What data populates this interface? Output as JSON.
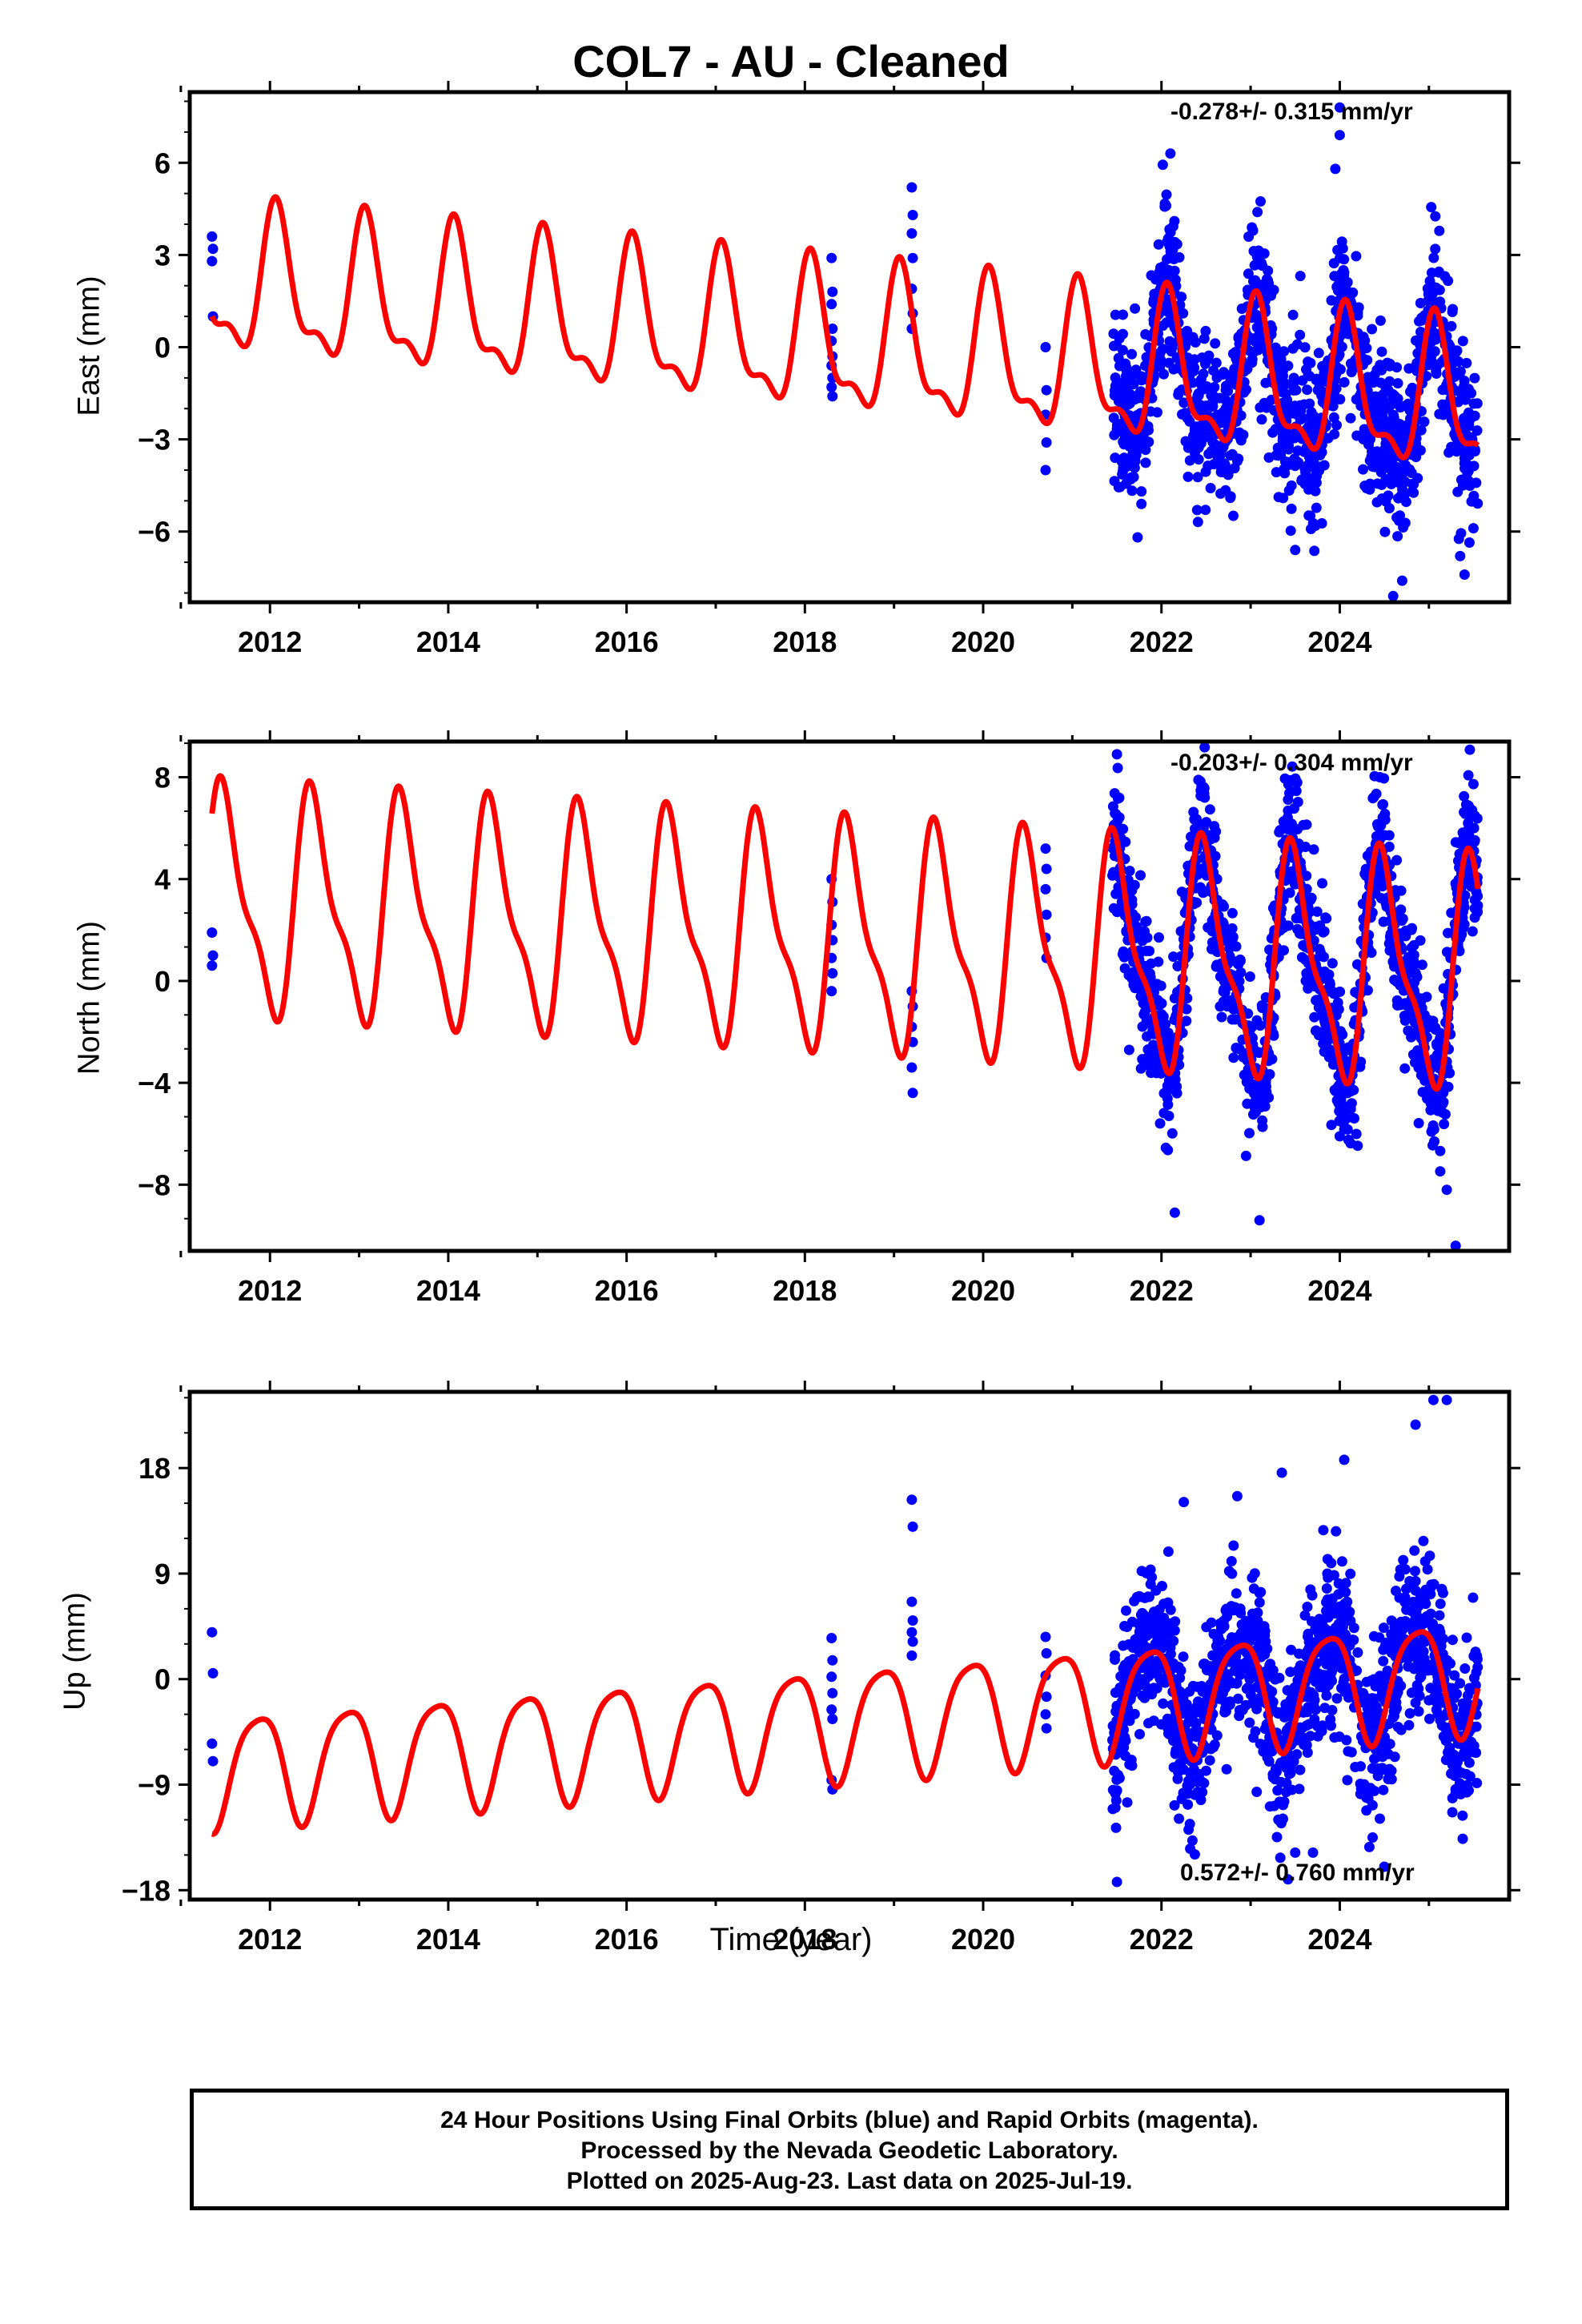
{
  "title": "COL7  - AU - Cleaned",
  "x_axis_label": "Time (year)",
  "footer": {
    "line1": "24 Hour Positions Using Final Orbits (blue) and Rapid Orbits (magenta).",
    "line2": "Processed by the Nevada Geodetic Laboratory.",
    "line3": "Plotted on 2025-Aug-23. Last data on 2025-Jul-19."
  },
  "colors": {
    "points": "#0000ff",
    "model": "#ff0000",
    "frame": "#000000"
  },
  "chart_data": [
    {
      "type": "scatter",
      "name": "east",
      "ylabel": "East (mm)",
      "rate_text": "-0.278+/- 0.315 mm/yr",
      "rate_position": "top-right",
      "xlim": [
        2011.1,
        2025.9
      ],
      "ylim": [
        -8.3,
        8.3
      ],
      "yticks": [
        -6,
        -3,
        0,
        3,
        6
      ],
      "xticks": [
        2012,
        2014,
        2016,
        2018,
        2020,
        2022,
        2024
      ],
      "model": {
        "offset": 0.05,
        "trend": -0.278,
        "ref_year": 2018.4,
        "annual_amp": 2.2,
        "annual_phase": 0.08,
        "semi_amp": 0.9,
        "semi_phase": 0.05
      },
      "points": {
        "sparse_epochs": [
          {
            "year": 2011.35,
            "values": [
              3.6,
              3.2,
              2.8,
              1.0
            ]
          },
          {
            "year": 2018.3,
            "values": [
              2.9,
              1.8,
              1.4,
              0.6,
              0.2,
              -0.3,
              -0.6,
              -1.0,
              -1.3,
              -1.6
            ]
          },
          {
            "year": 2019.2,
            "values": [
              5.2,
              4.3,
              3.7,
              2.9,
              1.9,
              1.1,
              0.6
            ]
          },
          {
            "year": 2020.7,
            "values": [
              0.0,
              -1.4,
              -2.2,
              -3.1,
              -4.0
            ]
          }
        ],
        "dense_range": [
          2021.45,
          2025.55
        ],
        "scatter_sd": 1.35,
        "outliers": [
          [
            2022.1,
            6.3
          ],
          [
            2024.0,
            7.8
          ],
          [
            2024.0,
            6.9
          ],
          [
            2022.4,
            -5.3
          ],
          [
            2023.5,
            -6.6
          ],
          [
            2024.6,
            -8.1
          ],
          [
            2024.7,
            -7.6
          ],
          [
            2025.4,
            -7.4
          ],
          [
            2025.35,
            -6.8
          ],
          [
            2023.95,
            5.8
          ]
        ]
      }
    },
    {
      "type": "scatter",
      "name": "north",
      "ylabel": "North (mm)",
      "rate_text": "-0.203+/- 0.304 mm/yr",
      "rate_position": "top-right",
      "xlim": [
        2011.1,
        2025.9
      ],
      "ylim": [
        -10.6,
        9.4
      ],
      "yticks": [
        -8,
        -4,
        0,
        4,
        8
      ],
      "xticks": [
        2012,
        2014,
        2016,
        2018,
        2020,
        2022,
        2024
      ],
      "model": {
        "offset": 1.6,
        "trend": -0.203,
        "ref_year": 2018.4,
        "annual_amp": 4.1,
        "annual_phase": 0.5,
        "semi_amp": 1.4,
        "semi_phase": 0.4
      },
      "points": {
        "sparse_epochs": [
          {
            "year": 2011.35,
            "values": [
              1.9,
              1.0,
              0.6
            ]
          },
          {
            "year": 2018.3,
            "values": [
              4.0,
              3.1,
              2.2,
              1.6,
              0.9,
              0.3,
              -0.4
            ]
          },
          {
            "year": 2019.2,
            "values": [
              -0.4,
              -1.0,
              -1.8,
              -2.4,
              -3.4,
              -4.4
            ]
          },
          {
            "year": 2020.7,
            "values": [
              5.2,
              4.4,
              3.6,
              2.6,
              1.7,
              0.9
            ]
          }
        ],
        "dense_range": [
          2021.45,
          2025.55
        ],
        "scatter_sd": 1.4,
        "outliers": [
          [
            2021.5,
            8.9
          ],
          [
            2022.15,
            -9.1
          ],
          [
            2023.1,
            -9.4
          ],
          [
            2024.45,
            8.0
          ],
          [
            2025.3,
            -10.4
          ],
          [
            2025.2,
            -8.2
          ],
          [
            2024.0,
            -6.1
          ]
        ]
      }
    },
    {
      "type": "scatter",
      "name": "up",
      "ylabel": "Up (mm)",
      "rate_text": "0.572+/- 0.760 mm/yr",
      "rate_position": "bottom-right",
      "xlim": [
        2011.1,
        2025.9
      ],
      "ylim": [
        -18.8,
        24.5
      ],
      "yticks": [
        -18,
        -9,
        0,
        9,
        18
      ],
      "xticks": [
        2012,
        2014,
        2016,
        2018,
        2020,
        2022,
        2024
      ],
      "model": {
        "offset": -3.6,
        "trend": 0.572,
        "ref_year": 2018.4,
        "annual_amp": 4.7,
        "annual_phase": 0.87,
        "semi_amp": 0.9,
        "semi_phase": 0.6
      },
      "points": {
        "sparse_epochs": [
          {
            "year": 2011.35,
            "values": [
              4.0,
              0.5,
              -5.5,
              -7.0
            ]
          },
          {
            "year": 2018.3,
            "values": [
              3.5,
              1.6,
              0.2,
              -1.2,
              -2.6,
              -3.4,
              -8.6,
              -9.4
            ]
          },
          {
            "year": 2019.2,
            "values": [
              15.3,
              13.0,
              6.6,
              5.0,
              4.0,
              3.2,
              2.0
            ]
          },
          {
            "year": 2020.7,
            "values": [
              3.6,
              2.2,
              0.3,
              -1.5,
              -3.0,
              -4.2
            ]
          }
        ],
        "dense_range": [
          2021.45,
          2025.55
        ],
        "scatter_sd": 3.6,
        "outliers": [
          [
            2024.85,
            21.7
          ],
          [
            2025.05,
            23.8
          ],
          [
            2025.2,
            23.8
          ],
          [
            2024.05,
            18.7
          ],
          [
            2021.5,
            -17.3
          ],
          [
            2023.5,
            -14.8
          ],
          [
            2023.7,
            -14.8
          ],
          [
            2024.5,
            -16.0
          ],
          [
            2022.85,
            15.6
          ],
          [
            2023.35,
            17.6
          ],
          [
            2022.25,
            15.1
          ]
        ]
      }
    }
  ]
}
